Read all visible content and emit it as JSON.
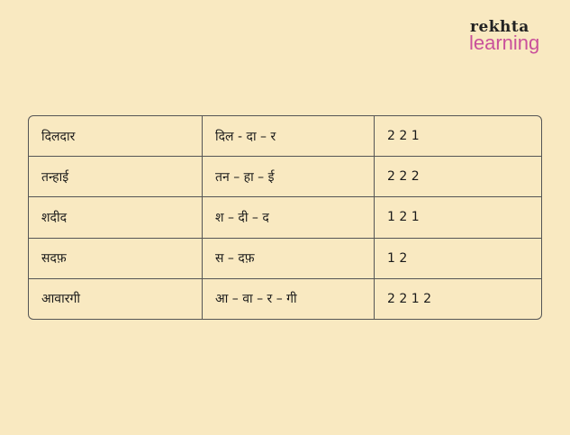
{
  "logo": {
    "line1": "rekhta",
    "line2": "learning",
    "accent": "#c9509b"
  },
  "table": {
    "rows": [
      [
        "दिलदार",
        "दिल - दा – र",
        "2 2 1"
      ],
      [
        "तन्हाई",
        "तन – हा – ई",
        "2 2 2"
      ],
      [
        "शदीद",
        "श – दी – द",
        "1 2 1"
      ],
      [
        "सदफ़",
        "स – दफ़",
        "1 2"
      ],
      [
        "आवारगी",
        "आ – वा – र – गी",
        "2 2 1 2"
      ]
    ]
  }
}
